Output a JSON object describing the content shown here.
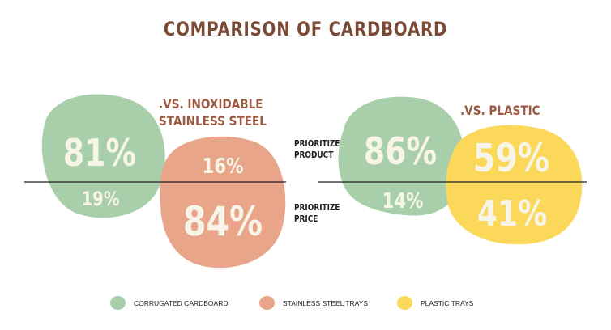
{
  "chart_data": {
    "type": "bubble-comparison",
    "title": "COMPARISON OF CARDBOARD",
    "row_labels": {
      "top": "PRIORITIZE PRODUCT",
      "top_line1": "PRIORITIZE",
      "top_line2": "PRODUCT",
      "bottom": "PRIORITIZE PRICE",
      "bottom_line1": "PRIORITIZE",
      "bottom_line2": "PRICE"
    },
    "panels": [
      {
        "subtitle_line1": ".VS. INOXIDABLE",
        "subtitle_line2": "STAINLESS STEEL",
        "series": [
          {
            "name": "CORRUGATED CARDBOARD",
            "prioritize_product": 81,
            "prioritize_price": 19,
            "product_label": "81%",
            "price_label": "19%"
          },
          {
            "name": "STAINLESS STEEL TRAYS",
            "prioritize_product": 16,
            "prioritize_price": 84,
            "product_label": "16%",
            "price_label": "84%"
          }
        ]
      },
      {
        "subtitle_line1": ".VS. PLASTIC",
        "subtitle_line2": "",
        "series": [
          {
            "name": "CORRUGATED CARDBOARD",
            "prioritize_product": 86,
            "prioritize_price": 14,
            "product_label": "86%",
            "price_label": "14%"
          },
          {
            "name": "PLASTIC TRAYS",
            "prioritize_product": 59,
            "prioritize_price": 41,
            "product_label": "59%",
            "price_label": "41%"
          }
        ]
      }
    ],
    "legend": [
      {
        "label": "CORRUGATED CARDBOARD",
        "color": "#a9cfaa"
      },
      {
        "label": "STAINLESS STEEL TRAYS",
        "color": "#e9a589"
      },
      {
        "label": "PLASTIC TRAYS",
        "color": "#fbd75a"
      }
    ]
  }
}
